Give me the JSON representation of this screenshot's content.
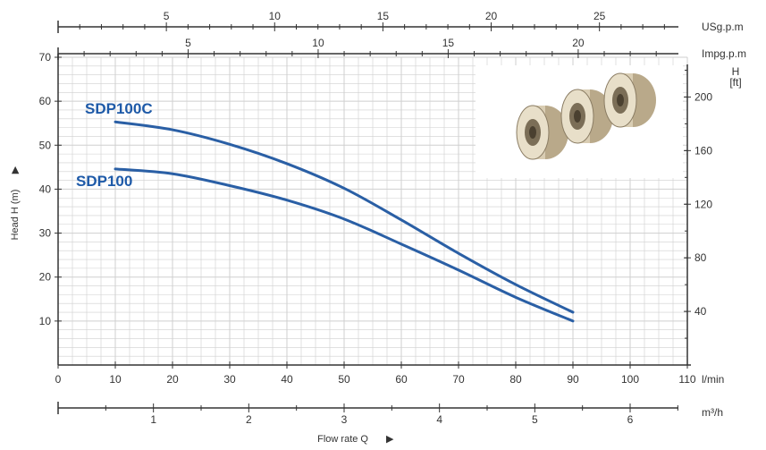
{
  "chart_data": {
    "type": "line",
    "colors": {
      "curve": "#2a5fa5",
      "label": "#1e5aa8",
      "grid": "#cfcfcf",
      "axis": "#333333"
    },
    "x": {
      "label": "Flow rate Q",
      "unit": "l/min",
      "lim": [
        0,
        110
      ],
      "ticks": [
        0,
        10,
        20,
        30,
        40,
        50,
        60,
        70,
        80,
        90,
        100,
        110
      ]
    },
    "y": {
      "label": "Head H (m)",
      "lim": [
        0,
        70
      ],
      "ticks": [
        10,
        20,
        30,
        40,
        50,
        60,
        70
      ]
    },
    "y_right": {
      "unit": "H",
      "unit_sub": "[ft]",
      "ticks": [
        40,
        80,
        120,
        160,
        200
      ]
    },
    "x_secondary": [
      {
        "unit": "m³/h",
        "ticks": [
          1,
          2,
          3,
          4,
          5,
          6
        ]
      },
      {
        "unit": "USg.p.m",
        "ticks": [
          5,
          10,
          15,
          20,
          25
        ]
      },
      {
        "unit": "Impg.p.m",
        "ticks": [
          5,
          10,
          15,
          20
        ]
      }
    ],
    "series": [
      {
        "name": "SDP100C",
        "x": [
          10,
          20,
          30,
          40,
          50,
          60,
          70,
          80,
          90
        ],
        "values": [
          55.3,
          53.5,
          50.2,
          45.8,
          40.2,
          33.0,
          25.4,
          18.3,
          12.0
        ]
      },
      {
        "name": "SDP100",
        "x": [
          10,
          20,
          30,
          40,
          50,
          60,
          70,
          80,
          90
        ],
        "values": [
          44.6,
          43.5,
          40.8,
          37.5,
          33.2,
          27.5,
          21.6,
          15.4,
          10.0
        ]
      }
    ],
    "grid": true,
    "photo_inset": true
  }
}
